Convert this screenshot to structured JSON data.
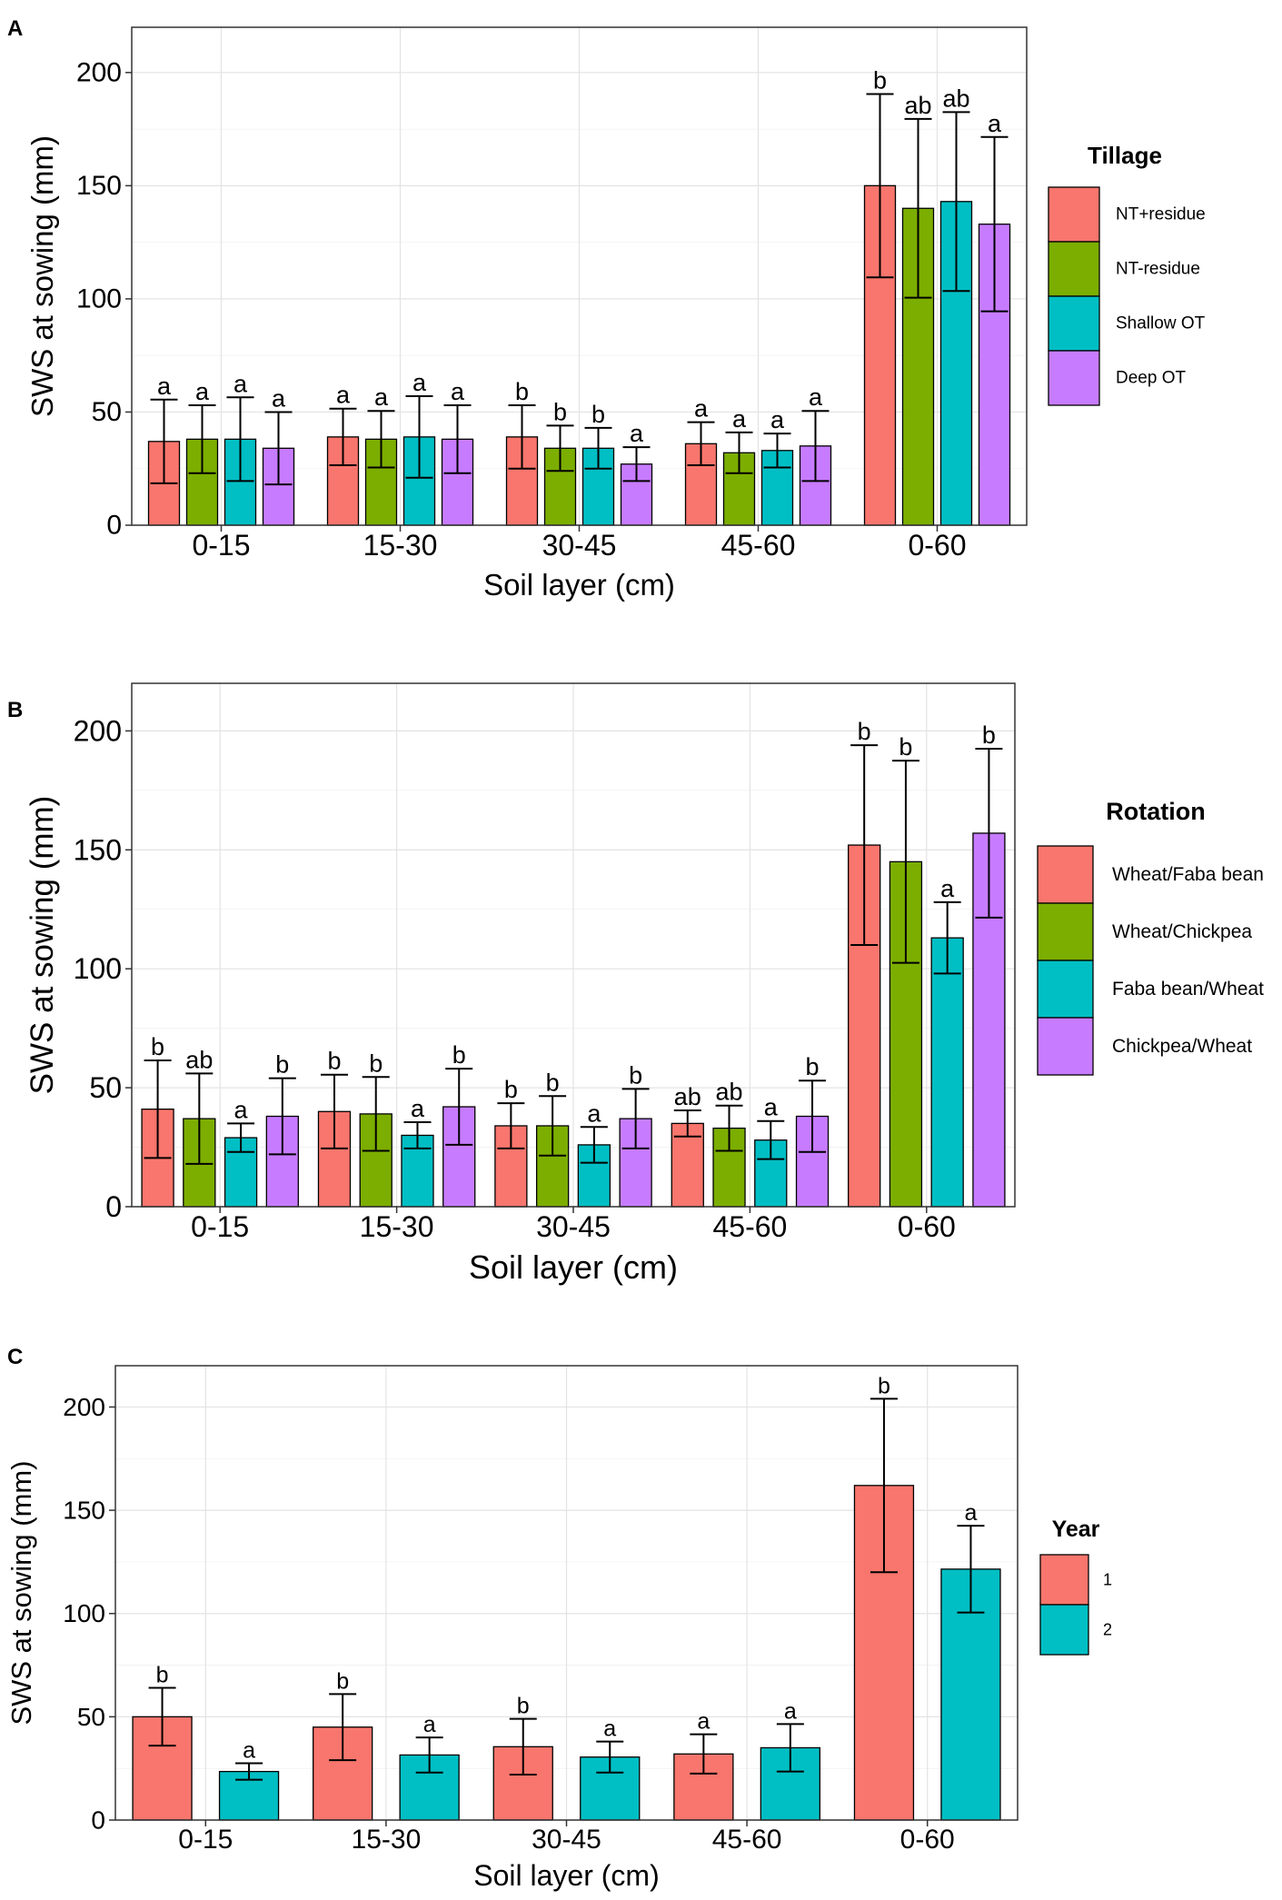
{
  "chart_data": [
    {
      "panel_label": "A",
      "type": "bar",
      "xlabel": "Soil layer (cm)",
      "ylabel": "SWS at sowing (mm)",
      "ylim": [
        0,
        220
      ],
      "yticks": [
        0,
        50,
        100,
        150,
        200
      ],
      "grid": true,
      "categories": [
        "0-15",
        "15-30",
        "30-45",
        "45-60",
        "0-60"
      ],
      "legend": {
        "title": "Tillage",
        "position": "right"
      },
      "series": [
        {
          "name": "NT+residue",
          "color": "#F8766D",
          "values": [
            37,
            39,
            39,
            36,
            150
          ],
          "errors": [
            18.5,
            12.5,
            14,
            9.5,
            40.5
          ],
          "letters": [
            "a",
            "a",
            "b",
            "a",
            "b"
          ]
        },
        {
          "name": "NT-residue",
          "color": "#7CAE00",
          "values": [
            38,
            38,
            34,
            32,
            140
          ],
          "errors": [
            15,
            12.5,
            10,
            9,
            39.5
          ],
          "letters": [
            "a",
            "a",
            "b",
            "a",
            "ab"
          ]
        },
        {
          "name": "Shallow OT",
          "color": "#00BFC4",
          "values": [
            38,
            39,
            34,
            33,
            143
          ],
          "errors": [
            18.5,
            18,
            9,
            7.5,
            39.5
          ],
          "letters": [
            "a",
            "a",
            "b",
            "a",
            "ab"
          ]
        },
        {
          "name": "Deep OT",
          "color": "#C77CFF",
          "values": [
            34,
            38,
            27,
            35,
            133
          ],
          "errors": [
            16,
            15,
            7.5,
            15.5,
            38.5
          ],
          "letters": [
            "a",
            "a",
            "a",
            "a",
            "a"
          ]
        }
      ]
    },
    {
      "panel_label": "B",
      "type": "bar",
      "xlabel": "Soil layer (cm)",
      "ylabel": "SWS at sowing (mm)",
      "ylim": [
        0,
        220
      ],
      "yticks": [
        0,
        50,
        100,
        150,
        200
      ],
      "grid": true,
      "categories": [
        "0-15",
        "15-30",
        "30-45",
        "45-60",
        "0-60"
      ],
      "legend": {
        "title": "Rotation",
        "position": "right"
      },
      "series": [
        {
          "name": "Wheat/Faba bean",
          "color": "#F8766D",
          "values": [
            41,
            40,
            34,
            35,
            152
          ],
          "errors": [
            20.5,
            15.5,
            9.5,
            5.5,
            42
          ],
          "letters": [
            "b",
            "b",
            "b",
            "ab",
            "b"
          ]
        },
        {
          "name": "Wheat/Chickpea",
          "color": "#7CAE00",
          "values": [
            37,
            39,
            34,
            33,
            145
          ],
          "errors": [
            19,
            15.5,
            12.5,
            9.5,
            42.5
          ],
          "letters": [
            "ab",
            "b",
            "b",
            "ab",
            "b"
          ]
        },
        {
          "name": "Faba bean/Wheat",
          "color": "#00BFC4",
          "values": [
            29,
            30,
            26,
            28,
            113
          ],
          "errors": [
            6,
            5.5,
            7.5,
            8,
            15
          ],
          "letters": [
            "a",
            "a",
            "a",
            "a",
            "a"
          ]
        },
        {
          "name": "Chickpea/Wheat",
          "color": "#C77CFF",
          "values": [
            38,
            42,
            37,
            38,
            157
          ],
          "errors": [
            16,
            16,
            12.5,
            15,
            35.5
          ],
          "letters": [
            "b",
            "b",
            "b",
            "b",
            "b"
          ]
        }
      ]
    },
    {
      "panel_label": "C",
      "type": "bar",
      "xlabel": "Soil layer (cm)",
      "ylabel": "SWS at sowing (mm)",
      "ylim": [
        0,
        220
      ],
      "yticks": [
        0,
        50,
        100,
        150,
        200
      ],
      "grid": true,
      "categories": [
        "0-15",
        "15-30",
        "30-45",
        "45-60",
        "0-60"
      ],
      "legend": {
        "title": "Year",
        "position": "right"
      },
      "series": [
        {
          "name": "1",
          "color": "#F8766D",
          "values": [
            50,
            45,
            35.5,
            32,
            162
          ],
          "errors": [
            14,
            16,
            13.5,
            9.5,
            42
          ],
          "letters": [
            "b",
            "b",
            "b",
            "a",
            "b"
          ]
        },
        {
          "name": "2",
          "color": "#00BFC4",
          "values": [
            23.5,
            31.5,
            30.5,
            35,
            121.5
          ],
          "errors": [
            4,
            8.5,
            7.5,
            11.5,
            21
          ],
          "letters": [
            "a",
            "a",
            "a",
            "a",
            "a"
          ]
        }
      ]
    }
  ]
}
